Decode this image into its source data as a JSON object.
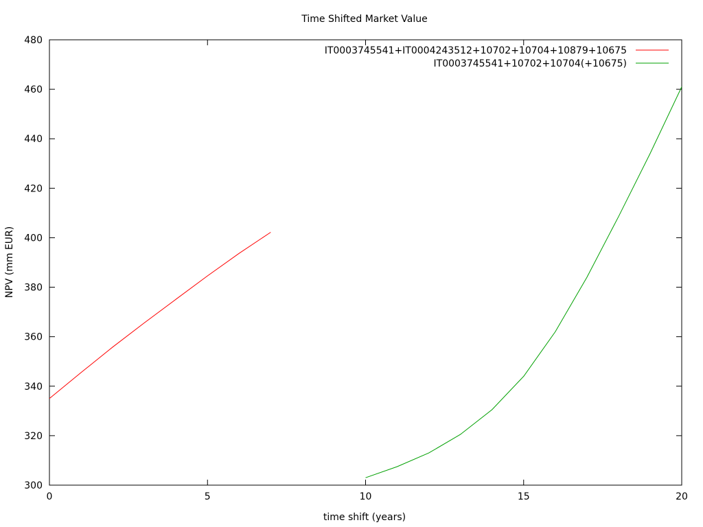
{
  "chart_data": {
    "type": "line",
    "title": "Time Shifted Market Value",
    "xlabel": "time shift (years)",
    "ylabel": "NPV (mm EUR)",
    "xlim": [
      0,
      20
    ],
    "ylim": [
      300,
      480
    ],
    "xticks": [
      0,
      5,
      10,
      15,
      20
    ],
    "yticks": [
      300,
      320,
      340,
      360,
      380,
      400,
      420,
      440,
      460,
      480
    ],
    "grid": false,
    "legend_position": "top-right",
    "series": [
      {
        "name": "IT0003745541+IT0004243512+10702+10704+10879+10675",
        "color": "#ff0000",
        "x": [
          0,
          1,
          2,
          3,
          4,
          5,
          6,
          7
        ],
        "y": [
          335.0,
          345.5,
          355.8,
          365.6,
          375.1,
          384.6,
          393.7,
          402.2
        ]
      },
      {
        "name": "IT0003745541+10702+10704(+10675)",
        "color": "#00a000",
        "x": [
          10,
          11,
          12,
          13,
          14,
          15,
          16,
          17,
          18,
          19,
          20
        ],
        "y": [
          303.0,
          307.5,
          313.0,
          320.5,
          330.5,
          344.0,
          362.0,
          384.0,
          408.5,
          434.0,
          461.0
        ]
      }
    ]
  }
}
